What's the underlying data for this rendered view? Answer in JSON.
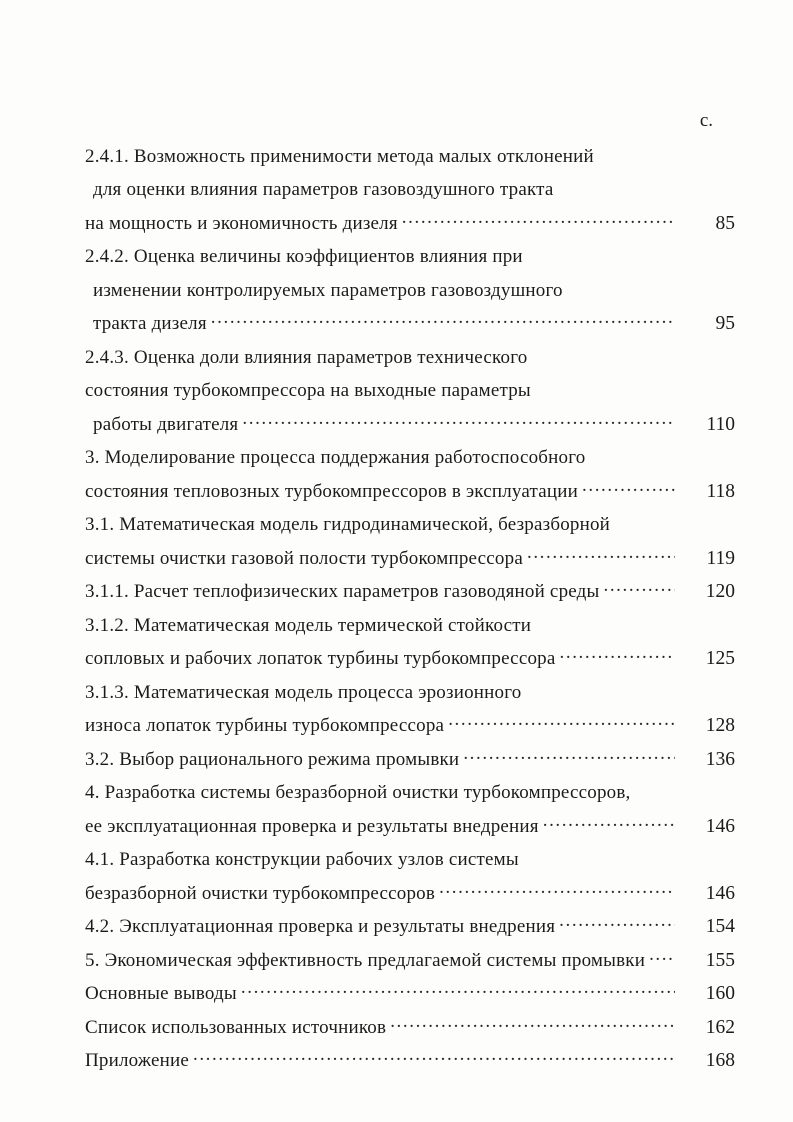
{
  "toc": {
    "column_header": "с.",
    "rows": [
      {
        "text": "2.4.1. Возможность применимости метода малых отклонений",
        "page": ""
      },
      {
        "text": "для оценки влияния параметров газовоздушного тракта",
        "page": ""
      },
      {
        "text": "на мощность и экономичность дизеля",
        "page": "85"
      },
      {
        "text": "2.4.2. Оценка величины коэффициентов влияния при",
        "page": ""
      },
      {
        "text": "изменении контролируемых параметров газовоздушного",
        "page": ""
      },
      {
        "text": "тракта дизеля",
        "page": "95"
      },
      {
        "text": "2.4.3. Оценка доли влияния параметров технического",
        "page": ""
      },
      {
        "text": "состояния турбокомпрессора на выходные параметры",
        "page": ""
      },
      {
        "text": "работы двигателя",
        "page": "110"
      },
      {
        "text": "3. Моделирование процесса поддержания работоспособного",
        "page": ""
      },
      {
        "text": "состояния тепловозных турбокомпрессоров в эксплуатации",
        "page": "118"
      },
      {
        "text": "3.1. Математическая модель гидродинамической, безразборной",
        "page": ""
      },
      {
        "text": "системы очистки газовой полости турбокомпрессора",
        "page": "119"
      },
      {
        "text": "3.1.1. Расчет теплофизических параметров газоводяной среды",
        "page": "120"
      },
      {
        "text": "3.1.2. Математическая модель термической стойкости",
        "page": ""
      },
      {
        "text": "сопловых и рабочих лопаток турбины турбокомпрессора",
        "page": "125"
      },
      {
        "text": "3.1.3. Математическая модель процесса эрозионного",
        "page": ""
      },
      {
        "text": "износа лопаток турбины турбокомпрессора",
        "page": "128"
      },
      {
        "text": "3.2. Выбор рационального режима промывки",
        "page": "136"
      },
      {
        "text": "4. Разработка системы безразборной очистки турбокомпрессоров,",
        "page": ""
      },
      {
        "text": "ее эксплуатационная проверка и результаты внедрения",
        "page": "146"
      },
      {
        "text": "4.1. Разработка конструкции рабочих узлов системы",
        "page": ""
      },
      {
        "text": "безразборной очистки турбокомпрессоров",
        "page": "146"
      },
      {
        "text": "4.2. Эксплуатационная проверка и результаты внедрения",
        "page": "154"
      },
      {
        "text": "5. Экономическая эффективность предлагаемой системы промывки",
        "page": "155"
      },
      {
        "text": "Основные выводы",
        "page": "160"
      },
      {
        "text": "Список использованных источников",
        "page": "162"
      },
      {
        "text": "Приложение",
        "page": "168"
      }
    ],
    "text_color": "#1b1b1b",
    "paper_color": "#fdfdfc"
  }
}
